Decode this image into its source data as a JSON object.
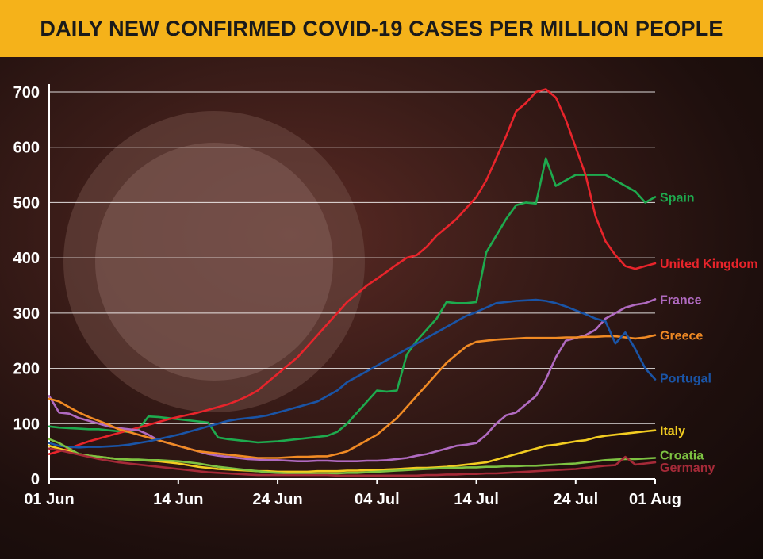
{
  "chart_data": {
    "type": "line",
    "title": "DAILY NEW CONFIRMED COVID-19 CASES PER MILLION PEOPLE",
    "xlabel": "",
    "ylabel": "",
    "ylim": [
      0,
      700
    ],
    "yticks": [
      0,
      100,
      200,
      300,
      400,
      500,
      600,
      700
    ],
    "x": [
      1,
      2,
      3,
      4,
      5,
      6,
      7,
      8,
      9,
      10,
      11,
      12,
      13,
      14,
      15,
      16,
      17,
      18,
      19,
      20,
      21,
      22,
      23,
      24,
      25,
      26,
      27,
      28,
      29,
      30,
      31,
      32,
      33,
      34,
      35,
      36,
      37,
      38,
      39,
      40,
      41,
      42,
      43,
      44,
      45,
      46,
      47,
      48,
      49,
      50,
      51,
      52,
      53,
      54,
      55,
      56,
      57,
      58,
      59,
      60,
      61,
      62
    ],
    "xticks": [
      {
        "day": 1,
        "label": "01 Jun"
      },
      {
        "day": 14,
        "label": "14 Jun"
      },
      {
        "day": 24,
        "label": "24 Jun"
      },
      {
        "day": 34,
        "label": "04 Jul"
      },
      {
        "day": 44,
        "label": "14 Jul"
      },
      {
        "day": 54,
        "label": "24 Jul"
      },
      {
        "day": 62,
        "label": "01 Aug"
      }
    ],
    "grid": true,
    "legend": "labels at line ends (right)",
    "series": [
      {
        "name": "Spain",
        "color": "#1eaa4e",
        "values": [
          95,
          93,
          92,
          91,
          90,
          90,
          88,
          86,
          85,
          90,
          113,
          112,
          110,
          108,
          106,
          104,
          102,
          75,
          72,
          70,
          68,
          66,
          67,
          68,
          70,
          72,
          74,
          76,
          78,
          85,
          100,
          120,
          140,
          160,
          158,
          160,
          225,
          250,
          270,
          290,
          320,
          318,
          318,
          320,
          410,
          440,
          470,
          495,
          500,
          498,
          580,
          530,
          540,
          550,
          550,
          550,
          550,
          540,
          530,
          520,
          500,
          510
        ]
      },
      {
        "name": "United Kingdom",
        "color": "#e8242b",
        "values": [
          45,
          50,
          55,
          62,
          68,
          73,
          78,
          83,
          88,
          93,
          98,
          103,
          108,
          112,
          116,
          120,
          125,
          130,
          135,
          142,
          150,
          160,
          175,
          190,
          205,
          220,
          240,
          260,
          280,
          300,
          320,
          335,
          350,
          362,
          375,
          388,
          400,
          405,
          420,
          440,
          455,
          470,
          490,
          510,
          540,
          580,
          620,
          665,
          680,
          700,
          705,
          690,
          650,
          600,
          550,
          475,
          430,
          405,
          385,
          380,
          385,
          390
        ]
      },
      {
        "name": "France",
        "color": "#b06ac0",
        "values": [
          150,
          120,
          118,
          110,
          105,
          100,
          95,
          92,
          90,
          88,
          80,
          70,
          65,
          60,
          55,
          50,
          45,
          42,
          40,
          38,
          36,
          35,
          34,
          34,
          33,
          32,
          32,
          33,
          33,
          32,
          32,
          32,
          33,
          33,
          34,
          36,
          38,
          42,
          45,
          50,
          55,
          60,
          62,
          65,
          80,
          100,
          115,
          120,
          135,
          150,
          180,
          220,
          250,
          255,
          260,
          270,
          290,
          300,
          310,
          315,
          318,
          325
        ]
      },
      {
        "name": "Greece",
        "color": "#f08a24",
        "values": [
          145,
          140,
          130,
          120,
          112,
          105,
          98,
          90,
          85,
          80,
          75,
          70,
          65,
          60,
          55,
          50,
          48,
          46,
          44,
          42,
          40,
          38,
          38,
          38,
          39,
          40,
          40,
          41,
          41,
          45,
          50,
          60,
          70,
          80,
          95,
          110,
          130,
          150,
          170,
          190,
          210,
          225,
          240,
          248,
          250,
          252,
          253,
          254,
          255,
          255,
          255,
          255,
          256,
          256,
          257,
          257,
          258,
          258,
          256,
          254,
          256,
          260
        ]
      },
      {
        "name": "Portugal",
        "color": "#1a54a6",
        "values": [
          65,
          60,
          58,
          57,
          58,
          58,
          59,
          60,
          62,
          65,
          68,
          72,
          76,
          80,
          85,
          90,
          95,
          100,
          105,
          108,
          110,
          112,
          115,
          120,
          125,
          130,
          135,
          140,
          150,
          160,
          175,
          185,
          195,
          205,
          215,
          225,
          235,
          245,
          255,
          265,
          275,
          285,
          295,
          302,
          310,
          318,
          320,
          322,
          323,
          324,
          322,
          318,
          312,
          305,
          298,
          290,
          285,
          245,
          265,
          235,
          200,
          180
        ]
      },
      {
        "name": "Italy",
        "color": "#f2cc21",
        "values": [
          60,
          55,
          50,
          45,
          42,
          40,
          38,
          36,
          35,
          34,
          33,
          32,
          30,
          28,
          25,
          22,
          20,
          18,
          17,
          16,
          15,
          14,
          14,
          13,
          13,
          13,
          13,
          14,
          14,
          14,
          15,
          15,
          16,
          16,
          17,
          18,
          19,
          20,
          20,
          21,
          22,
          24,
          26,
          28,
          30,
          35,
          40,
          45,
          50,
          55,
          60,
          62,
          65,
          68,
          70,
          75,
          78,
          80,
          82,
          84,
          86,
          88
        ]
      },
      {
        "name": "Croatia",
        "color": "#7dc242",
        "values": [
          72,
          65,
          55,
          45,
          42,
          40,
          38,
          36,
          35,
          35,
          34,
          34,
          33,
          32,
          30,
          28,
          25,
          22,
          20,
          18,
          16,
          14,
          12,
          11,
          10,
          10,
          10,
          10,
          10,
          10,
          11,
          11,
          12,
          13,
          14,
          15,
          16,
          17,
          18,
          19,
          20,
          20,
          21,
          21,
          22,
          22,
          23,
          23,
          24,
          24,
          25,
          26,
          27,
          28,
          30,
          32,
          34,
          35,
          36,
          36,
          37,
          38
        ]
      },
      {
        "name": "Germany",
        "color": "#a52a38",
        "values": [
          55,
          52,
          48,
          44,
          40,
          36,
          33,
          30,
          28,
          26,
          24,
          22,
          20,
          18,
          16,
          14,
          12,
          11,
          10,
          9,
          8,
          7,
          7,
          7,
          7,
          7,
          7,
          7,
          7,
          6,
          6,
          6,
          6,
          6,
          6,
          6,
          6,
          6,
          7,
          7,
          8,
          8,
          9,
          9,
          10,
          10,
          11,
          12,
          13,
          14,
          15,
          16,
          17,
          18,
          20,
          22,
          24,
          25,
          40,
          26,
          28,
          30
        ]
      }
    ]
  }
}
